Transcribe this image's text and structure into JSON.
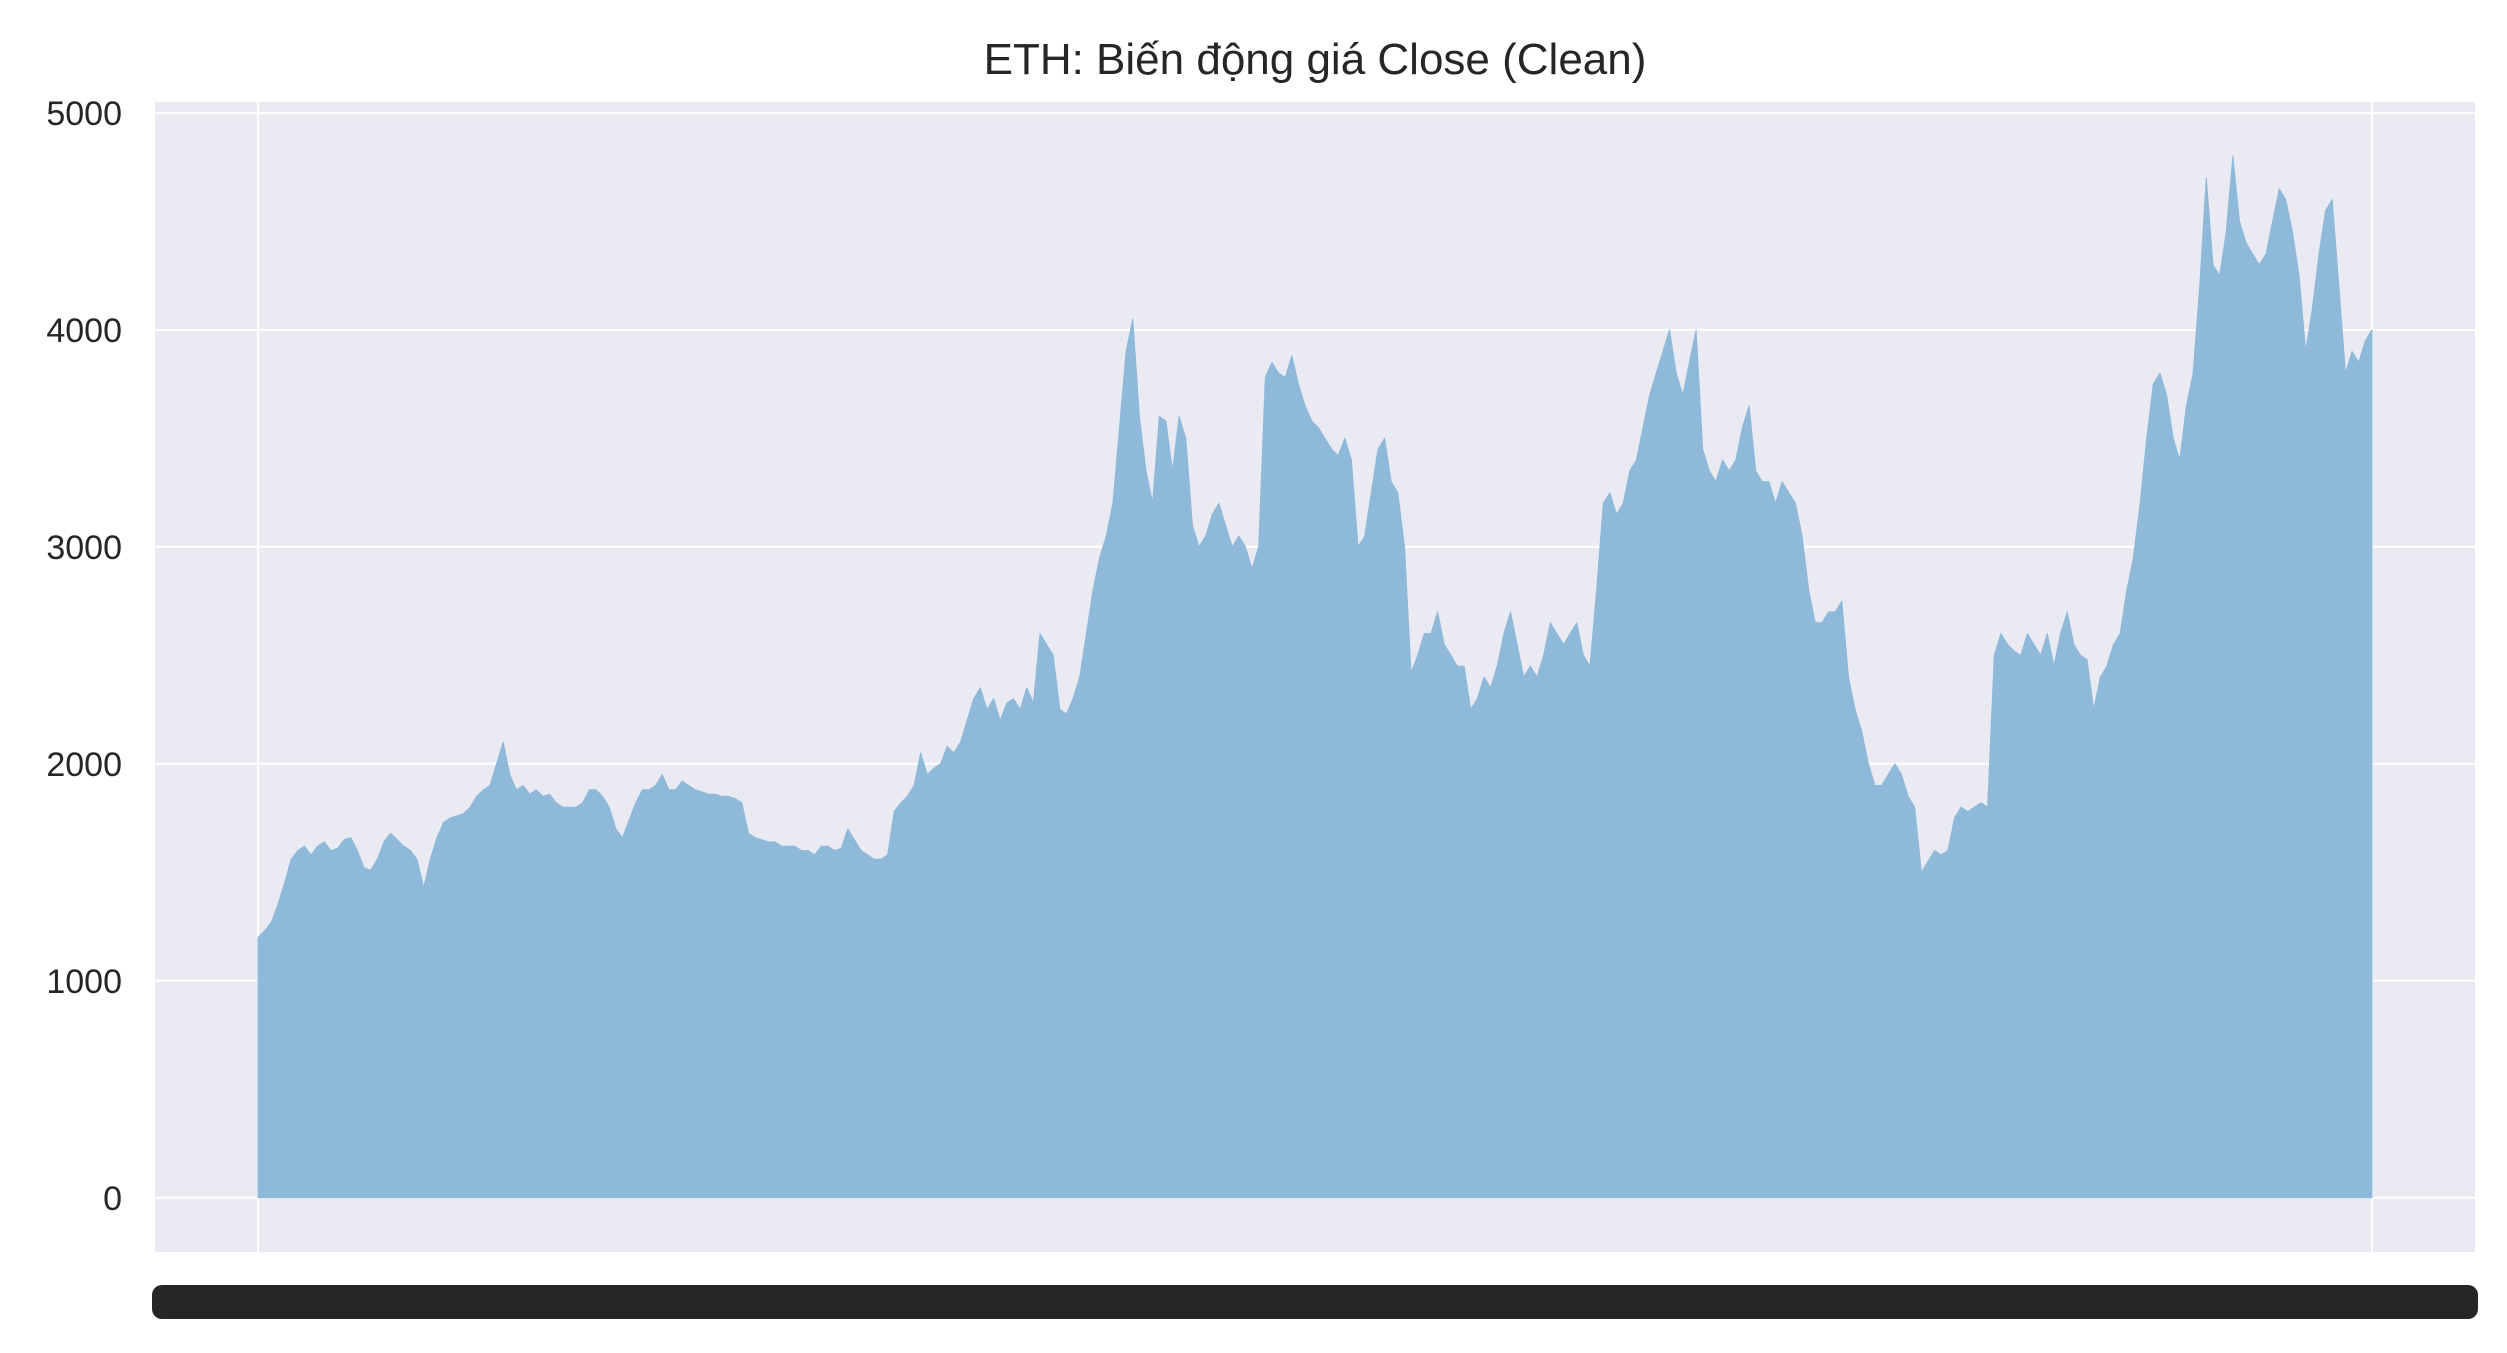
{
  "chart_data": {
    "type": "area",
    "title": "ETH: Biến động giá Close (Clean)",
    "xlabel": "",
    "ylabel": "",
    "ylim": [
      -250,
      5050
    ],
    "y_ticks": [
      0,
      1000,
      2000,
      3000,
      4000,
      5000
    ],
    "x_tick_labels_note": "overlapping unreadable date labels",
    "grid": true,
    "legend": "none",
    "colors": {
      "fill": "#8fb9d9",
      "axes_bg": "#eaeaf2",
      "grid": "#ffffff",
      "text": "#262626"
    },
    "series": [
      {
        "values": [
          1200,
          1230,
          1270,
          1350,
          1450,
          1560,
          1600,
          1620,
          1580,
          1620,
          1640,
          1600,
          1610,
          1650,
          1660,
          1600,
          1520,
          1510,
          1560,
          1640,
          1680,
          1650,
          1620,
          1600,
          1560,
          1430,
          1560,
          1660,
          1730,
          1750,
          1760,
          1770,
          1800,
          1850,
          1880,
          1900,
          2000,
          2100,
          1950,
          1880,
          1900,
          1860,
          1880,
          1850,
          1860,
          1820,
          1800,
          1800,
          1800,
          1820,
          1880,
          1880,
          1850,
          1800,
          1700,
          1660,
          1740,
          1820,
          1880,
          1880,
          1900,
          1950,
          1880,
          1880,
          1920,
          1900,
          1880,
          1870,
          1860,
          1860,
          1850,
          1850,
          1840,
          1820,
          1680,
          1660,
          1650,
          1640,
          1640,
          1620,
          1620,
          1620,
          1600,
          1600,
          1580,
          1620,
          1620,
          1600,
          1610,
          1700,
          1650,
          1600,
          1580,
          1560,
          1560,
          1580,
          1780,
          1820,
          1850,
          1900,
          2050,
          1950,
          1980,
          2000,
          2080,
          2050,
          2100,
          2200,
          2300,
          2350,
          2250,
          2300,
          2200,
          2280,
          2300,
          2250,
          2350,
          2280,
          2600,
          2550,
          2500,
          2250,
          2230,
          2300,
          2400,
          2600,
          2800,
          2950,
          3050,
          3200,
          3550,
          3900,
          4050,
          3600,
          3350,
          3200,
          3600,
          3580,
          3350,
          3600,
          3500,
          3100,
          3000,
          3050,
          3150,
          3200,
          3100,
          3000,
          3050,
          3000,
          2900,
          3000,
          3780,
          3850,
          3800,
          3780,
          3880,
          3750,
          3650,
          3580,
          3550,
          3500,
          3450,
          3420,
          3500,
          3400,
          3000,
          3050,
          3250,
          3450,
          3500,
          3300,
          3250,
          3000,
          2420,
          2500,
          2600,
          2600,
          2700,
          2550,
          2500,
          2450,
          2450,
          2250,
          2300,
          2400,
          2350,
          2450,
          2600,
          2700,
          2550,
          2400,
          2450,
          2400,
          2500,
          2650,
          2600,
          2550,
          2600,
          2650,
          2500,
          2450,
          2800,
          3200,
          3250,
          3150,
          3200,
          3350,
          3400,
          3550,
          3700,
          3800,
          3900,
          4000,
          3800,
          3700,
          3850,
          4000,
          3450,
          3350,
          3300,
          3400,
          3350,
          3400,
          3550,
          3650,
          3350,
          3300,
          3300,
          3200,
          3300,
          3250,
          3200,
          3050,
          2800,
          2650,
          2650,
          2700,
          2700,
          2750,
          2400,
          2250,
          2150,
          2000,
          1900,
          1900,
          1950,
          2000,
          1950,
          1850,
          1800,
          1500,
          1550,
          1600,
          1580,
          1600,
          1750,
          1800,
          1780,
          1800,
          1820,
          1800,
          2500,
          2600,
          2550,
          2520,
          2500,
          2600,
          2550,
          2500,
          2600,
          2450,
          2600,
          2700,
          2550,
          2500,
          2480,
          2250,
          2400,
          2450,
          2550,
          2600,
          2800,
          2950,
          3200,
          3500,
          3750,
          3800,
          3700,
          3500,
          3400,
          3650,
          3800,
          4200,
          4700,
          4300,
          4250,
          4450,
          4800,
          4500,
          4400,
          4350,
          4300,
          4350,
          4500,
          4650,
          4600,
          4450,
          4250,
          3900,
          4100,
          4350,
          4550,
          4600,
          4200,
          3800,
          3900,
          3850,
          3950,
          4000
        ]
      }
    ]
  }
}
